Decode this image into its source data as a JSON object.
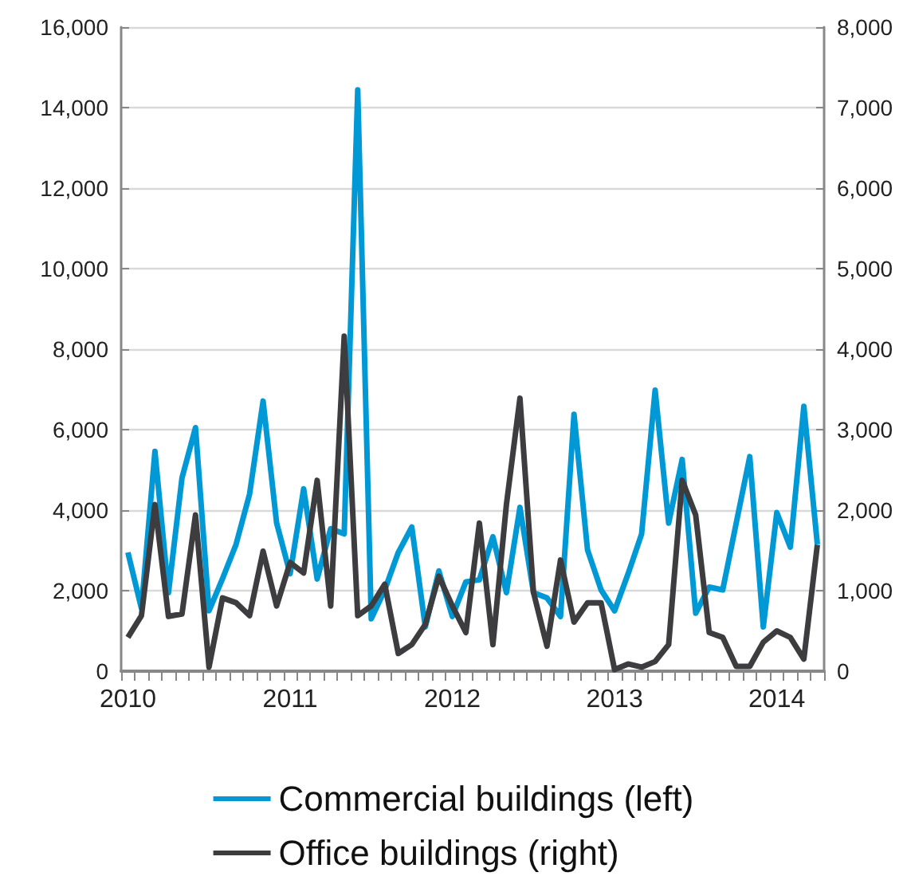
{
  "chart_data": {
    "type": "line",
    "categories": [
      "2010",
      null,
      null,
      null,
      null,
      null,
      null,
      null,
      null,
      null,
      null,
      null,
      "2011",
      null,
      null,
      null,
      null,
      null,
      null,
      null,
      null,
      null,
      null,
      null,
      "2012",
      null,
      null,
      null,
      null,
      null,
      null,
      null,
      null,
      null,
      null,
      null,
      "2013",
      null,
      null,
      null,
      null,
      null,
      null,
      null,
      null,
      null,
      null,
      null,
      "2014",
      null,
      null,
      null
    ],
    "series": [
      {
        "name": "Commercial buildings (left)",
        "color": "#0099d6",
        "values": [
          2950,
          1560,
          5460,
          1950,
          4800,
          6050,
          1500,
          2300,
          3150,
          4400,
          6710,
          3680,
          2420,
          4530,
          2290,
          3540,
          3410,
          14440,
          1300,
          2020,
          2950,
          3580,
          1100,
          2490,
          1360,
          2220,
          2270,
          3340,
          1950,
          4070,
          1950,
          1820,
          1360,
          6380,
          3010,
          2020,
          1500,
          2420,
          3410,
          6980,
          3680,
          5260,
          1440,
          2090,
          2020,
          3680,
          5330,
          1100,
          3940,
          3080,
          6580,
          3150
        ]
      },
      {
        "name": "Office buildings (right)",
        "color": "#3d3d40",
        "axis": "y2",
        "values": [
          420,
          690,
          2070,
          680,
          710,
          1940,
          50,
          910,
          850,
          690,
          1490,
          810,
          1350,
          1220,
          2370,
          810,
          4160,
          690,
          810,
          1080,
          220,
          330,
          580,
          1180,
          810,
          480,
          1840,
          330,
          2070,
          3390,
          980,
          310,
          1380,
          610,
          850,
          850,
          20,
          90,
          50,
          120,
          330,
          2370,
          1940,
          480,
          420,
          60,
          60,
          360,
          500,
          420,
          150,
          1570
        ]
      }
    ],
    "ylim": [
      0,
      16000
    ],
    "yticks": [
      0,
      {
        "value": 2000,
        "label": "2,000"
      },
      {
        "value": 4000,
        "label": "4,000"
      },
      {
        "value": 6000,
        "label": "6,000"
      },
      {
        "value": 8000,
        "label": "8,000"
      },
      {
        "value": 10000,
        "label": "10,000"
      },
      {
        "value": 12000,
        "label": "12,000"
      },
      {
        "value": 14000,
        "label": "14,000"
      },
      {
        "value": 16000,
        "label": "16,000"
      }
    ],
    "y2lim": [
      0,
      8000
    ],
    "y2ticks": [
      0,
      {
        "value": 1000,
        "label": "1,000"
      },
      {
        "value": 2000,
        "label": "2,000"
      },
      {
        "value": 3000,
        "label": "3,000"
      },
      {
        "value": 4000,
        "label": "4,000"
      },
      {
        "value": 5000,
        "label": "5,000"
      },
      {
        "value": 6000,
        "label": "6,000"
      },
      {
        "value": 7000,
        "label": "7,000"
      },
      {
        "value": 8000,
        "label": "8,000"
      }
    ],
    "grid": "y",
    "legend": "bottom",
    "marker": "none",
    "line_style": "solid"
  }
}
